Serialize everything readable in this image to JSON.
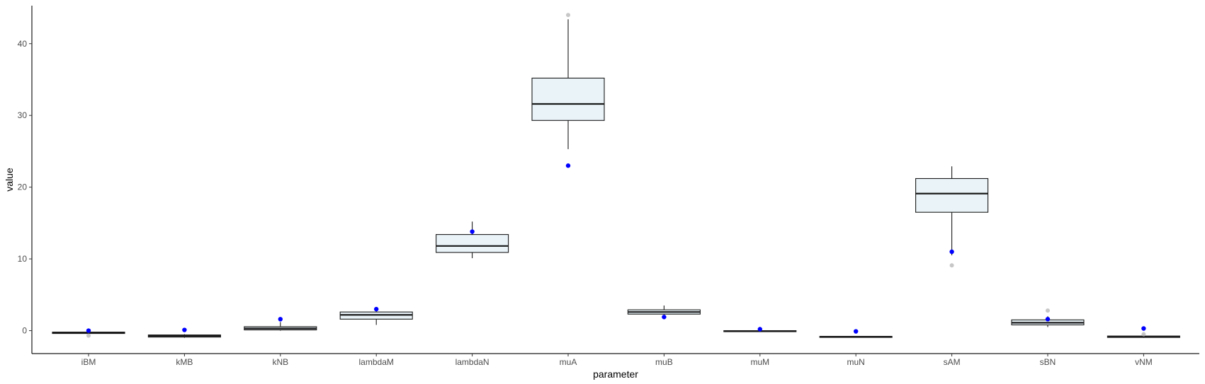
{
  "chart_data": {
    "type": "box",
    "xlabel": "parameter",
    "ylabel": "value",
    "ylim": [
      -3.2,
      45.3
    ],
    "yticks": [
      0,
      10,
      20,
      30,
      40
    ],
    "grid": false,
    "box_fill": "#e9f3f8",
    "box_stroke": "#1a1a1a",
    "point_color": "#0000ff",
    "outlier_color": "#bdbdbd",
    "categories": [
      "iBM",
      "kMB",
      "kNB",
      "lambdaM",
      "lambdaN",
      "muA",
      "muB",
      "muM",
      "muN",
      "sAM",
      "sBN",
      "vNM"
    ],
    "boxes": [
      {
        "label": "iBM",
        "whisker_low": -0.5,
        "q1": -0.4,
        "median": -0.3,
        "q3": -0.2,
        "whisker_high": -0.1,
        "outliers": [
          -0.7
        ]
      },
      {
        "label": "kMB",
        "whisker_low": -1.0,
        "q1": -0.9,
        "median": -0.75,
        "q3": -0.6,
        "whisker_high": -0.5,
        "outliers": []
      },
      {
        "label": "kNB",
        "whisker_low": 0.0,
        "q1": 0.1,
        "median": 0.3,
        "q3": 0.55,
        "whisker_high": 1.2,
        "outliers": []
      },
      {
        "label": "lambdaM",
        "whisker_low": 0.8,
        "q1": 1.6,
        "median": 2.2,
        "q3": 2.6,
        "whisker_high": 3.0,
        "outliers": []
      },
      {
        "label": "lambdaN",
        "whisker_low": 10.1,
        "q1": 10.9,
        "median": 11.8,
        "q3": 13.4,
        "whisker_high": 15.2,
        "outliers": []
      },
      {
        "label": "muA",
        "whisker_low": 25.3,
        "q1": 29.3,
        "median": 31.6,
        "q3": 35.2,
        "whisker_high": 43.4,
        "outliers": [
          44.0
        ]
      },
      {
        "label": "muB",
        "whisker_low": 2.2,
        "q1": 2.3,
        "median": 2.6,
        "q3": 2.9,
        "whisker_high": 3.5,
        "outliers": []
      },
      {
        "label": "muM",
        "whisker_low": -0.15,
        "q1": -0.1,
        "median": -0.05,
        "q3": 0.0,
        "whisker_high": 0.05,
        "outliers": []
      },
      {
        "label": "muN",
        "whisker_low": -0.95,
        "q1": -0.9,
        "median": -0.85,
        "q3": -0.8,
        "whisker_high": -0.75,
        "outliers": []
      },
      {
        "label": "sAM",
        "whisker_low": 10.5,
        "q1": 16.5,
        "median": 19.1,
        "q3": 21.2,
        "whisker_high": 22.9,
        "outliers": [
          9.1
        ]
      },
      {
        "label": "sBN",
        "whisker_low": 0.5,
        "q1": 0.8,
        "median": 1.1,
        "q3": 1.5,
        "whisker_high": 2.0,
        "outliers": [
          2.8
        ]
      },
      {
        "label": "vNM",
        "whisker_low": -1.0,
        "q1": -0.95,
        "median": -0.85,
        "q3": -0.75,
        "whisker_high": -0.6,
        "outliers": [
          -0.5
        ]
      }
    ],
    "points": [
      {
        "label": "iBM",
        "value": 0.0
      },
      {
        "label": "kMB",
        "value": 0.1
      },
      {
        "label": "kNB",
        "value": 1.6
      },
      {
        "label": "lambdaM",
        "value": 3.0
      },
      {
        "label": "lambdaN",
        "value": 13.8
      },
      {
        "label": "muA",
        "value": 23.0
      },
      {
        "label": "muB",
        "value": 1.9
      },
      {
        "label": "muM",
        "value": 0.2
      },
      {
        "label": "muN",
        "value": -0.1
      },
      {
        "label": "sAM",
        "value": 11.0
      },
      {
        "label": "sBN",
        "value": 1.6
      },
      {
        "label": "vNM",
        "value": 0.3
      }
    ]
  }
}
